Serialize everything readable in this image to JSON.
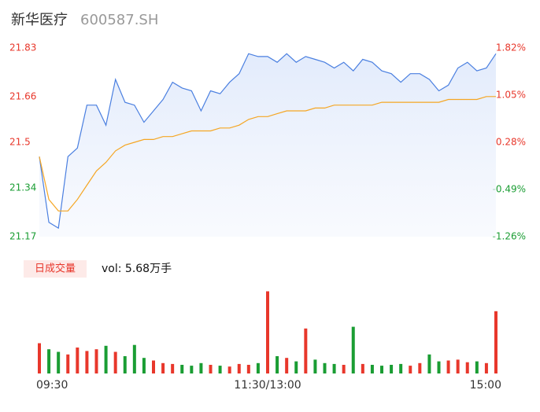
{
  "chart_data": [
    {
      "type": "line",
      "title": "新华医疗",
      "subtitle": "600587.SH",
      "categories": [
        "09:30",
        null,
        null,
        null,
        null,
        null,
        null,
        null,
        null,
        null,
        null,
        null,
        null,
        null,
        null,
        null,
        null,
        null,
        null,
        null,
        null,
        null,
        null,
        null,
        "11:30/13:00",
        null,
        null,
        null,
        null,
        null,
        null,
        null,
        null,
        null,
        null,
        null,
        null,
        null,
        null,
        null,
        null,
        null,
        null,
        null,
        null,
        null,
        null,
        null,
        "15:00"
      ],
      "series": [
        {
          "color": "#4a7fe0",
          "values": [
            21.45,
            21.22,
            21.2,
            21.45,
            21.48,
            21.63,
            21.63,
            21.56,
            21.72,
            21.64,
            21.63,
            21.57,
            21.61,
            21.65,
            21.71,
            21.69,
            21.68,
            21.61,
            21.68,
            21.67,
            21.71,
            21.74,
            21.81,
            21.8,
            21.8,
            21.78,
            21.81,
            21.78,
            21.8,
            21.79,
            21.78,
            21.76,
            21.78,
            21.75,
            21.79,
            21.78,
            21.75,
            21.74,
            21.71,
            21.74,
            21.74,
            21.72,
            21.68,
            21.7,
            21.76,
            21.78,
            21.75,
            21.76,
            21.81
          ]
        },
        {
          "color": "#f5a623",
          "values": [
            21.45,
            21.3,
            21.26,
            21.26,
            21.3,
            21.35,
            21.4,
            21.43,
            21.47,
            21.49,
            21.5,
            21.51,
            21.51,
            21.52,
            21.52,
            21.53,
            21.54,
            21.54,
            21.54,
            21.55,
            21.55,
            21.56,
            21.58,
            21.59,
            21.59,
            21.6,
            21.61,
            21.61,
            21.61,
            21.62,
            21.62,
            21.63,
            21.63,
            21.63,
            21.63,
            21.63,
            21.64,
            21.64,
            21.64,
            21.64,
            21.64,
            21.64,
            21.64,
            21.65,
            21.65,
            21.65,
            21.65,
            21.66,
            21.66
          ]
        }
      ],
      "ylim": [
        21.17,
        21.83
      ],
      "yticks": [
        21.83,
        21.66,
        21.5,
        21.34,
        21.17
      ],
      "y2lim": [
        -1.26,
        1.82
      ],
      "y2ticks": [
        {
          "value": 1.82,
          "label": "1.82%"
        },
        {
          "value": 1.05,
          "label": "1.05%"
        },
        {
          "value": 0.28,
          "label": "0.28%"
        },
        {
          "value": -0.49,
          "label": "-0.49%"
        },
        {
          "value": -1.26,
          "label": "-1.26%"
        }
      ]
    },
    {
      "type": "bar",
      "title": "日成交量",
      "subtitle": "vol: 5.68万手",
      "values": [
        350,
        280,
        250,
        220,
        300,
        260,
        280,
        320,
        250,
        200,
        330,
        180,
        150,
        120,
        110,
        100,
        90,
        120,
        100,
        90,
        80,
        110,
        100,
        120,
        950,
        200,
        180,
        140,
        520,
        160,
        120,
        110,
        100,
        540,
        110,
        100,
        90,
        100,
        110,
        90,
        120,
        220,
        140,
        150,
        160,
        130,
        140,
        120,
        720
      ],
      "ylim": [
        0,
        1000
      ]
    }
  ]
}
